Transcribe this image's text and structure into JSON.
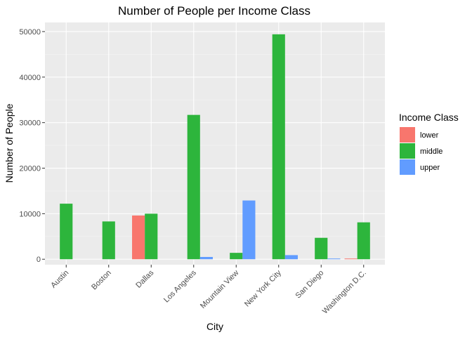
{
  "chart_data": {
    "type": "bar",
    "title": "Number of People per Income Class",
    "xlabel": "City",
    "ylabel": "Number of People",
    "categories": [
      "Austin",
      "Boston",
      "Dallas",
      "Los Angeles",
      "Mountain View",
      "New York City",
      "San Diego",
      "Washington D.C."
    ],
    "series": [
      {
        "name": "lower",
        "color": "#F8766D",
        "values": [
          0,
          0,
          9600,
          0,
          0,
          0,
          0,
          150
        ]
      },
      {
        "name": "middle",
        "color": "#2DB53C",
        "values": [
          12200,
          8300,
          10000,
          31700,
          1400,
          49400,
          4700,
          8100
        ]
      },
      {
        "name": "upper",
        "color": "#619CFF",
        "values": [
          0,
          0,
          0,
          500,
          12900,
          900,
          150,
          0
        ]
      }
    ],
    "ylim": [
      -1200,
      52000
    ],
    "yticks": [
      0,
      10000,
      20000,
      30000,
      40000,
      50000
    ],
    "ytick_labels": [
      "0",
      "10000",
      "20000",
      "30000",
      "40000",
      "50000"
    ],
    "grid": true,
    "legend": {
      "title": "Income Class",
      "position": "right"
    }
  }
}
